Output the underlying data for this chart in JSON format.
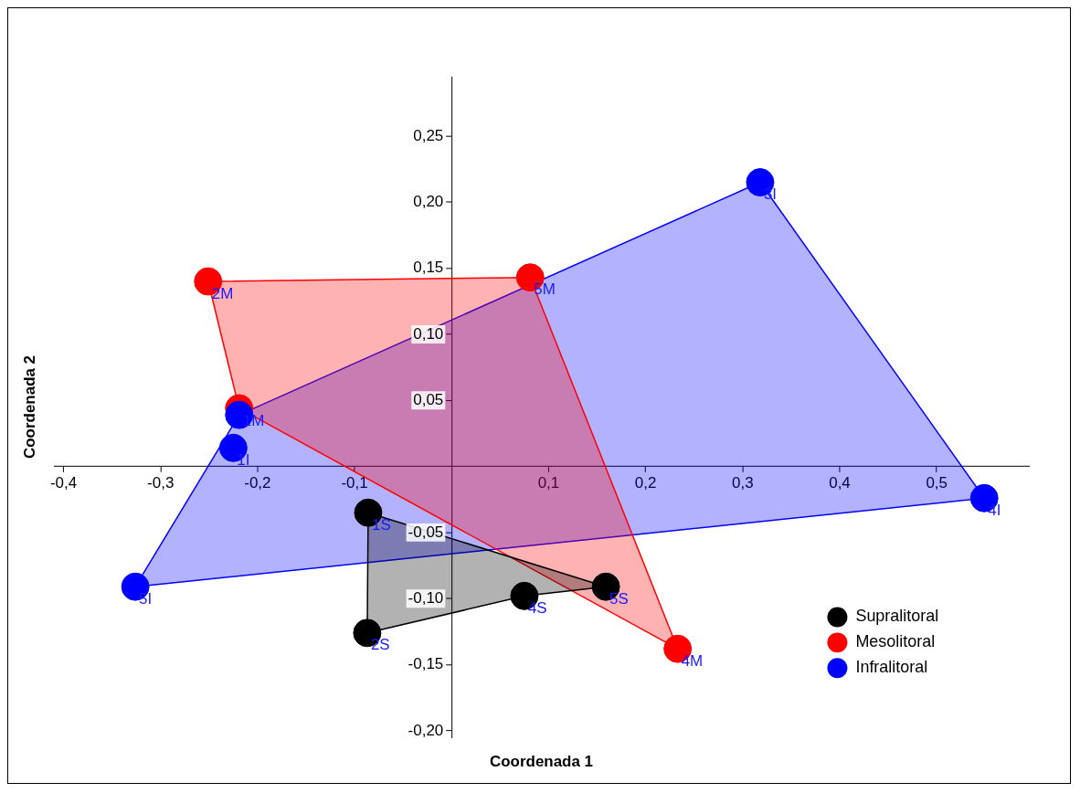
{
  "chart_data": {
    "type": "scatter",
    "xlabel": "Coordenada 1",
    "ylabel": "Coordenada 2",
    "xlim": [
      -0.41,
      0.595
    ],
    "ylim": [
      -0.205,
      0.295
    ],
    "xticks": [
      {
        "value": -0.4,
        "label": "-0,4"
      },
      {
        "value": -0.3,
        "label": "-0,3"
      },
      {
        "value": -0.2,
        "label": "-0,2"
      },
      {
        "value": -0.1,
        "label": "-0,1"
      },
      {
        "value": 0.1,
        "label": "0,1"
      },
      {
        "value": 0.2,
        "label": "0,2"
      },
      {
        "value": 0.3,
        "label": "0,3"
      },
      {
        "value": 0.4,
        "label": "0,4"
      },
      {
        "value": 0.5,
        "label": "0,5"
      }
    ],
    "yticks": [
      {
        "value": -0.2,
        "label": "-0,20"
      },
      {
        "value": -0.15,
        "label": "-0,15"
      },
      {
        "value": -0.1,
        "label": "-0,10"
      },
      {
        "value": -0.05,
        "label": "-0,05"
      },
      {
        "value": 0.05,
        "label": "0,05"
      },
      {
        "value": 0.1,
        "label": "0,10"
      },
      {
        "value": 0.15,
        "label": "0,15"
      },
      {
        "value": 0.2,
        "label": "0,20"
      },
      {
        "value": 0.25,
        "label": "0,25"
      }
    ],
    "grid": false,
    "legend": "bottom right",
    "marker": "circle",
    "series": [
      {
        "type": "area",
        "marker": "none",
        "color": "#000000",
        "x": [
          -0.086,
          0.159,
          0.075,
          -0.087,
          -0.086
        ],
        "values": [
          -0.035,
          -0.091,
          -0.098,
          -0.126,
          -0.035
        ]
      },
      {
        "type": "area",
        "marker": "none",
        "color": "#ff0000",
        "x": [
          -0.251,
          0.081,
          0.233,
          -0.219,
          -0.251
        ],
        "values": [
          0.14,
          0.143,
          -0.138,
          0.044,
          0.14
        ]
      },
      {
        "type": "area",
        "marker": "none",
        "color": "#0000ff",
        "x": [
          -0.326,
          -0.219,
          0.318,
          0.549,
          -0.326
        ],
        "values": [
          -0.091,
          0.039,
          0.215,
          -0.024,
          -0.091
        ]
      },
      {
        "name": "Supralitoral",
        "color": "#000000",
        "x": [
          -0.086,
          -0.087,
          0.075,
          0.159
        ],
        "values": [
          -0.035,
          -0.126,
          -0.098,
          -0.091
        ]
      },
      {
        "name": "Mesolitoral",
        "color": "#ff0000",
        "x": [
          -0.219,
          -0.251,
          0.233,
          0.081
        ],
        "values": [
          0.044,
          0.14,
          -0.138,
          0.143
        ]
      },
      {
        "name": "Infralitoral",
        "color": "#0000ff",
        "x": [
          -0.225,
          -0.219,
          0.318,
          0.549,
          -0.326
        ],
        "values": [
          0.014,
          0.039,
          0.215,
          -0.024,
          -0.091
        ]
      }
    ],
    "annotations": [
      {
        "text": "1S",
        "x": -0.086,
        "y": -0.035
      },
      {
        "text": "2S",
        "x": -0.087,
        "y": -0.126
      },
      {
        "text": "4S",
        "x": 0.075,
        "y": -0.098
      },
      {
        "text": "5S",
        "x": 0.159,
        "y": -0.091
      },
      {
        "text": "1M",
        "x": -0.219,
        "y": 0.044
      },
      {
        "text": "2M",
        "x": -0.251,
        "y": 0.14
      },
      {
        "text": "4M",
        "x": 0.233,
        "y": -0.138
      },
      {
        "text": "5M",
        "x": 0.081,
        "y": 0.143
      },
      {
        "text": "1I",
        "x": -0.225,
        "y": 0.014
      },
      {
        "text": "3I",
        "x": 0.318,
        "y": 0.215
      },
      {
        "text": "4I",
        "x": 0.549,
        "y": -0.024
      },
      {
        "text": "5I",
        "x": -0.326,
        "y": -0.091
      }
    ]
  }
}
